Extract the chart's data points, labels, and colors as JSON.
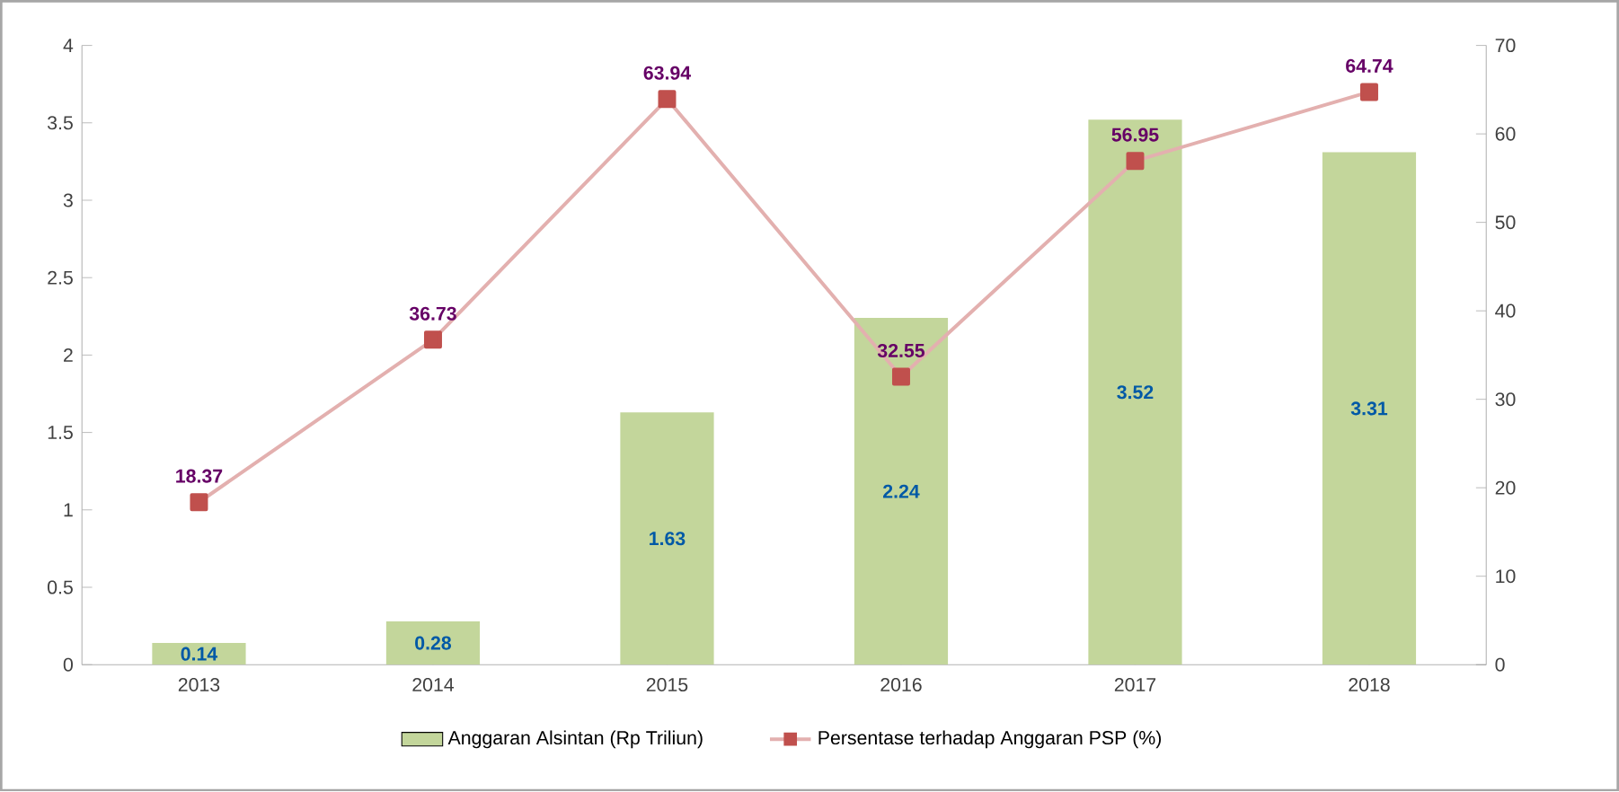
{
  "chart_data": {
    "type": "bar",
    "categories": [
      "2013",
      "2014",
      "2015",
      "2016",
      "2017",
      "2018"
    ],
    "series": [
      {
        "name": "Anggaran Alsintan (Rp Triliun)",
        "color": "#c3d69b",
        "values": [
          0.14,
          0.28,
          1.63,
          2.24,
          3.52,
          3.31
        ]
      },
      {
        "name": "Persentase terhadap Anggaran PSP (%)",
        "type": "line",
        "axis": "y2",
        "color": "#c0504d",
        "marker": "square",
        "values": [
          18.37,
          36.73,
          63.94,
          32.55,
          56.95,
          64.74
        ]
      }
    ],
    "ylim": [
      0,
      4
    ],
    "yticks": [
      0,
      0.5,
      1,
      1.5,
      2,
      2.5,
      3,
      3.5,
      4
    ],
    "y2lim": [
      0,
      70
    ],
    "y2ticks": [
      0,
      10,
      20,
      30,
      40,
      50,
      60,
      70
    ],
    "data_labels": true,
    "legend": "bottom",
    "grid": false
  }
}
